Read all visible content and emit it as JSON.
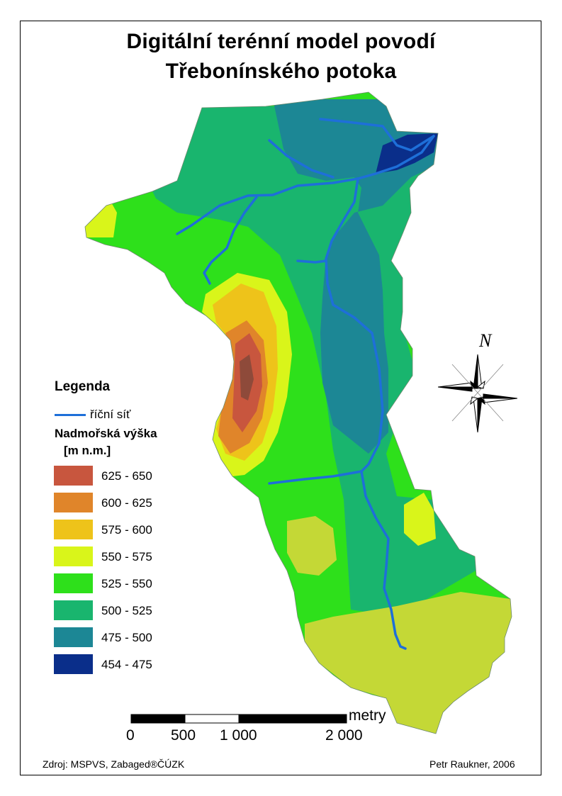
{
  "title": {
    "line1": "Digitální terénní model povodí",
    "line2": "Třebonínského potoka"
  },
  "legend": {
    "title": "Legenda",
    "river_label": "říční síť",
    "elevation_heading_line1": "Nadmořská výška",
    "elevation_heading_line2": "[m n.m.]",
    "classes": [
      {
        "label": "625 - 650",
        "color": "#c8563e"
      },
      {
        "label": "600 - 625",
        "color": "#e0852a"
      },
      {
        "label": "575 - 600",
        "color": "#eec31a"
      },
      {
        "label": "550 - 575",
        "color": "#d9f51a"
      },
      {
        "label": "525 - 550",
        "color": "#2ee01b"
      },
      {
        "label": "500 - 525",
        "color": "#19b56e"
      },
      {
        "label": "475 - 500",
        "color": "#1c8795"
      },
      {
        "label": "454 - 475",
        "color": "#0a2e8a"
      }
    ]
  },
  "scale_bar": {
    "unit": "metry",
    "ticks": [
      "0",
      "500",
      "1 000",
      "2 000"
    ]
  },
  "north_arrow": {
    "label": "N",
    "icon": "north-arrow-icon"
  },
  "source": "Zdroj: MSPVS, Zabaged®ČÚZK",
  "author": "Petr Raukner, 2006",
  "colors": {
    "river": "#1e6fd9"
  }
}
